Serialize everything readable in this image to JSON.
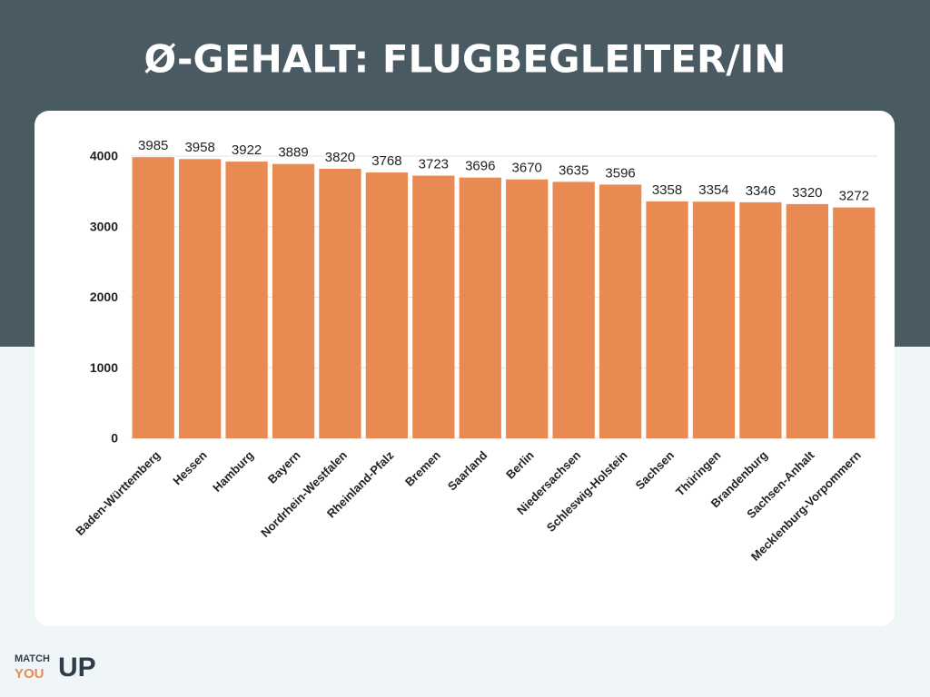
{
  "chart_data": {
    "type": "bar",
    "title": "Ø-GEHALT: FLUGBEGLEITER/IN",
    "categories": [
      "Baden-Württemberg",
      "Hessen",
      "Hamburg",
      "Bayern",
      "Nordrhein-Westfalen",
      "Rheinland-Pfalz",
      "Bremen",
      "Saarland",
      "Berlin",
      "Niedersachsen",
      "Schleswig-Holstein",
      "Sachsen",
      "Thüringen",
      "Brandenburg",
      "Sachsen-Anhalt",
      "Mecklenburg-Vorpommern"
    ],
    "values": [
      3985,
      3958,
      3922,
      3889,
      3820,
      3768,
      3723,
      3696,
      3670,
      3635,
      3596,
      3358,
      3354,
      3346,
      3320,
      3272
    ],
    "color": "#ea8a53",
    "ylim": [
      0,
      4000
    ],
    "yticks": [
      0,
      1000,
      2000,
      3000,
      4000
    ],
    "grid": true
  },
  "logo": {
    "top": "MATCH",
    "bottom": "YOU",
    "big": "UP"
  }
}
